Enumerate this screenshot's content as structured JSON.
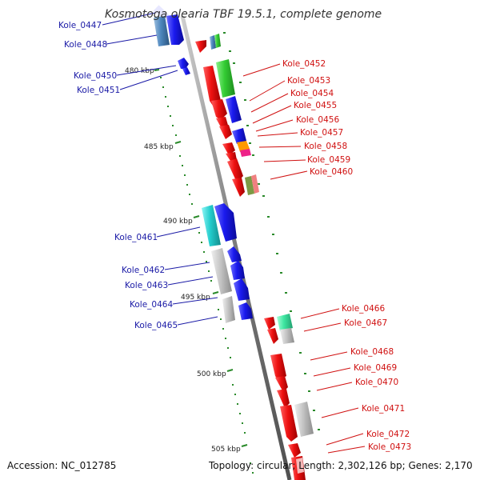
{
  "title": "Kosmotoga olearia TBF 19.5.1, complete genome",
  "footer": {
    "accession": "Accession: NC_012785",
    "topology": "Topology: circular; Length: 2,302,126 bp; Genes: 2,170"
  },
  "kbp_labels": [
    "480 kbp",
    "485 kbp",
    "490 kbp",
    "495 kbp",
    "500 kbp",
    "505 kbp"
  ],
  "genes": [
    {
      "id": "Kole_0447",
      "label": "Kole_0447"
    },
    {
      "id": "Kole_0448",
      "label": "Kole_0448"
    },
    {
      "id": "Kole_0450",
      "label": "Kole_0450"
    },
    {
      "id": "Kole_0451",
      "label": "Kole_0451"
    },
    {
      "id": "Kole_0452",
      "label": "Kole_0452"
    },
    {
      "id": "Kole_0453",
      "label": "Kole_0453"
    },
    {
      "id": "Kole_0454",
      "label": "Kole_0454"
    },
    {
      "id": "Kole_0455",
      "label": "Kole_0455"
    },
    {
      "id": "Kole_0456",
      "label": "Kole_0456"
    },
    {
      "id": "Kole_0457",
      "label": "Kole_0457"
    },
    {
      "id": "Kole_0458",
      "label": "Kole_0458"
    },
    {
      "id": "Kole_0459",
      "label": "Kole_0459"
    },
    {
      "id": "Kole_0460",
      "label": "Kole_0460"
    },
    {
      "id": "Kole_0461",
      "label": "Kole_0461"
    },
    {
      "id": "Kole_0462",
      "label": "Kole_0462"
    },
    {
      "id": "Kole_0463",
      "label": "Kole_0463"
    },
    {
      "id": "Kole_0464",
      "label": "Kole_0464"
    },
    {
      "id": "Kole_0465",
      "label": "Kole_0465"
    },
    {
      "id": "Kole_0466",
      "label": "Kole_0466"
    },
    {
      "id": "Kole_0467",
      "label": "Kole_0467"
    },
    {
      "id": "Kole_0468",
      "label": "Kole_0468"
    },
    {
      "id": "Kole_0469",
      "label": "Kole_0469"
    },
    {
      "id": "Kole_0470",
      "label": "Kole_0470"
    },
    {
      "id": "Kole_0471",
      "label": "Kole_0471"
    },
    {
      "id": "Kole_0472",
      "label": "Kole_0472"
    },
    {
      "id": "Kole_0473",
      "label": "Kole_0473"
    }
  ],
  "colors": {
    "forward_label": "#1a1aa6",
    "reverse_label": "#d01010",
    "blue": "#1010e0",
    "red": "#ee1111",
    "green": "#33cc33",
    "gray": "#bdbdbd",
    "cyan": "#22cccc",
    "tick_green": "#2a8a2a"
  }
}
